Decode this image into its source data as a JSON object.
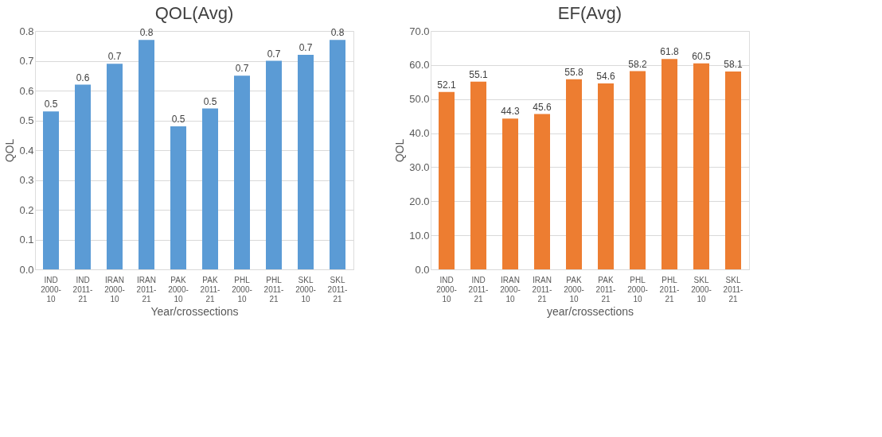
{
  "chart_data": [
    {
      "type": "bar",
      "title": "QOL(Avg)",
      "xlabel": "Year/crossections",
      "ylabel": "QOL",
      "categories": [
        "IND 2000- 10",
        "IND 2011- 21",
        "IRAN 2000- 10",
        "IRAN 2011- 21",
        "PAK 2000- 10",
        "PAK 2011- 21",
        "PHL 2000- 10",
        "PHL 2011- 21",
        "SKL 2000- 10",
        "SKL 2011- 21"
      ],
      "values": [
        0.53,
        0.62,
        0.69,
        0.77,
        0.48,
        0.54,
        0.65,
        0.7,
        0.72,
        0.77
      ],
      "value_labels": [
        "0.5",
        "0.6",
        "0.7",
        "0.8",
        "0.5",
        "0.5",
        "0.7",
        "0.7",
        "0.7",
        "0.8"
      ],
      "color": "#5b9bd5",
      "ylim": [
        0,
        0.8
      ],
      "yticks": [
        {
          "value": 0,
          "label": "0.0"
        },
        0.1,
        0.2,
        0.3,
        0.4,
        0.5,
        0.6,
        0.7,
        0.8
      ],
      "grid": "y"
    },
    {
      "type": "bar",
      "title": "EF(Avg)",
      "xlabel": "year/crossections",
      "ylabel": "QOL",
      "categories": [
        "IND 2000- 10",
        "IND 2011- 21",
        "IRAN 2000- 10",
        "IRAN 2011- 21",
        "PAK 2000- 10",
        "PAK 2011- 21",
        "PHL 2000- 10",
        "PHL 2011- 21",
        "SKL 2000- 10",
        "SKL 2011- 21"
      ],
      "values": [
        52.1,
        55.1,
        44.3,
        45.6,
        55.8,
        54.6,
        58.2,
        61.8,
        60.5,
        58.1
      ],
      "data_labels": true,
      "color": "#ed7d31",
      "ylim": [
        0,
        70
      ],
      "yticks": [
        {
          "value": 0,
          "label": "0.0"
        },
        {
          "value": 10,
          "label": "10.0"
        },
        {
          "value": 20,
          "label": "20.0"
        },
        {
          "value": 30,
          "label": "30.0"
        },
        {
          "value": 40,
          "label": "40.0"
        },
        {
          "value": 50,
          "label": "50.0"
        },
        {
          "value": 60,
          "label": "60.0"
        },
        {
          "value": 70,
          "label": "70.0"
        }
      ],
      "grid": "y"
    }
  ]
}
